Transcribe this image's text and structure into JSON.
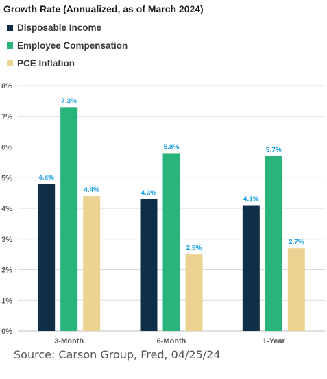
{
  "chart_data": {
    "type": "bar",
    "title": "Growth Rate (Annualized, as of March 2024)",
    "categories": [
      "3-Month",
      "6-Month",
      "1-Year"
    ],
    "series": [
      {
        "name": "Disposable Income",
        "color": "#0f2e48",
        "values": [
          4.8,
          4.3,
          4.1
        ],
        "labels": [
          "4.8%",
          "4.3%",
          "4.1%"
        ]
      },
      {
        "name": "Employee Compensation",
        "color": "#28b47b",
        "values": [
          7.3,
          5.8,
          5.7
        ],
        "labels": [
          "7.3%",
          "5.8%",
          "5.7%"
        ]
      },
      {
        "name": "PCE Inflation",
        "color": "#ebd391",
        "values": [
          4.4,
          2.5,
          2.7
        ],
        "labels": [
          "4.4%",
          "2.5%",
          "2.7%"
        ]
      }
    ],
    "ylim": [
      0,
      8
    ],
    "yticks": [
      "0%",
      "1%",
      "2%",
      "3%",
      "4%",
      "5%",
      "6%",
      "7%",
      "8%"
    ],
    "grid": true,
    "legend_position": "top-left",
    "data_label_color": "#1aa0e6"
  },
  "source": "Source: Carson Group, Fred, 04/25/24"
}
